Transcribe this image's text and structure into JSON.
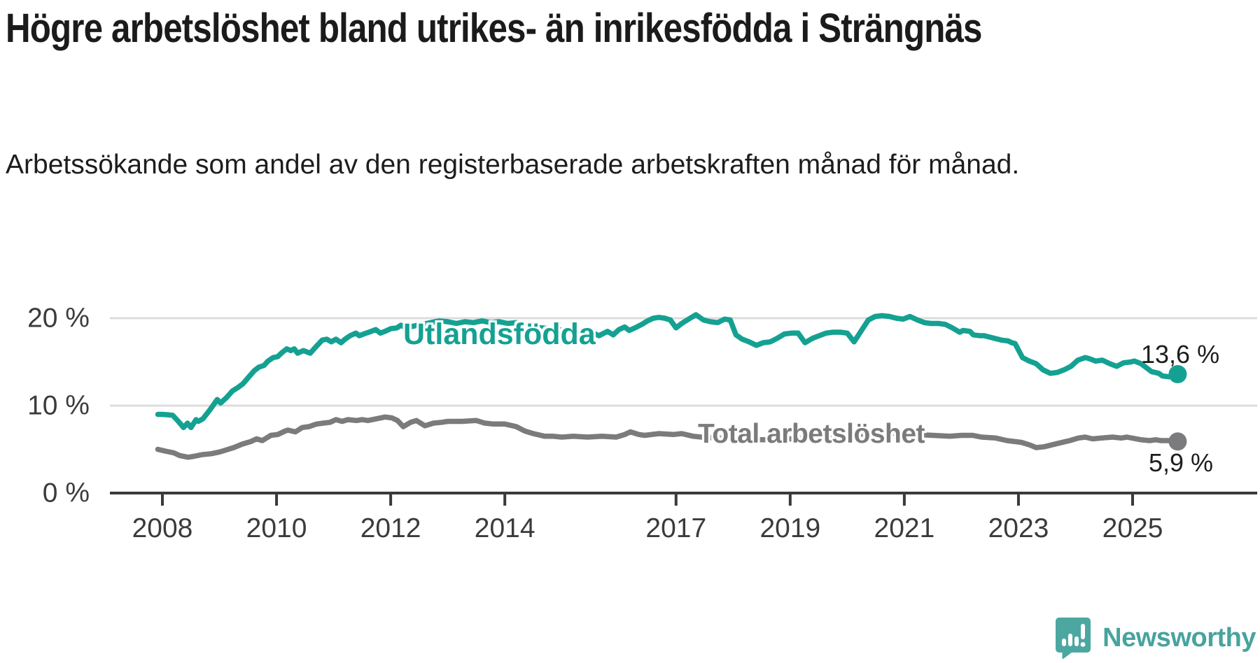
{
  "page": {
    "title": "Högre arbetslöshet bland utrikes- än inrikesfödda i Strängnäs",
    "subtitle": "Arbetssökande som andel av den registerbaserade arbetskraften månad för månad."
  },
  "footer": {
    "brand": "Newsworthy"
  },
  "chart_data": {
    "type": "line",
    "title": "Högre arbetslöshet bland utrikes- än inrikesfödda i Strängnäs",
    "subtitle": "Arbetssökande som andel av den registerbaserade arbetskraften månad för månad.",
    "unit": "percent",
    "grid": "horizontal",
    "legend_position": "inline-labels",
    "xlim": [
      2007.1,
      2027.2
    ],
    "ylim": [
      0,
      22
    ],
    "x_ticks": [
      {
        "value": 2008,
        "label": "2008"
      },
      {
        "value": 2010,
        "label": "2010"
      },
      {
        "value": 2012,
        "label": "2012"
      },
      {
        "value": 2014,
        "label": "2014"
      },
      {
        "value": 2017,
        "label": "2017"
      },
      {
        "value": 2019,
        "label": "2019"
      },
      {
        "value": 2021,
        "label": "2021"
      },
      {
        "value": 2023,
        "label": "2023"
      },
      {
        "value": 2025,
        "label": "2025"
      }
    ],
    "y_ticks": [
      {
        "value": 0,
        "label": "0 %"
      },
      {
        "value": 10,
        "label": "10 %"
      },
      {
        "value": 20,
        "label": "20 %"
      }
    ],
    "colors": {
      "axis": "#3a3a3a",
      "grid": "#dcdcdc",
      "tick_text": "#3b3b3b"
    },
    "series": [
      {
        "name": "Utlandsfödda",
        "color": "#14a192",
        "end_label": "13,6 %",
        "end_value": 13.6,
        "points": [
          [
            2007.92,
            9.0
          ],
          [
            2008.0,
            9.0
          ],
          [
            2008.1,
            8.95
          ],
          [
            2008.18,
            8.9
          ],
          [
            2008.28,
            8.2
          ],
          [
            2008.37,
            7.5
          ],
          [
            2008.44,
            8.0
          ],
          [
            2008.5,
            7.5
          ],
          [
            2008.59,
            8.4
          ],
          [
            2008.63,
            8.2
          ],
          [
            2008.71,
            8.5
          ],
          [
            2008.83,
            9.5
          ],
          [
            2008.96,
            10.7
          ],
          [
            2009.02,
            10.3
          ],
          [
            2009.12,
            10.9
          ],
          [
            2009.23,
            11.7
          ],
          [
            2009.33,
            12.1
          ],
          [
            2009.41,
            12.5
          ],
          [
            2009.53,
            13.4
          ],
          [
            2009.61,
            14.0
          ],
          [
            2009.69,
            14.4
          ],
          [
            2009.78,
            14.6
          ],
          [
            2009.85,
            15.1
          ],
          [
            2009.94,
            15.5
          ],
          [
            2010.02,
            15.6
          ],
          [
            2010.1,
            16.1
          ],
          [
            2010.18,
            16.5
          ],
          [
            2010.25,
            16.3
          ],
          [
            2010.31,
            16.5
          ],
          [
            2010.37,
            16.0
          ],
          [
            2010.47,
            16.3
          ],
          [
            2010.59,
            16.0
          ],
          [
            2010.7,
            16.8
          ],
          [
            2010.8,
            17.5
          ],
          [
            2010.88,
            17.6
          ],
          [
            2010.96,
            17.3
          ],
          [
            2011.04,
            17.6
          ],
          [
            2011.13,
            17.2
          ],
          [
            2011.2,
            17.6
          ],
          [
            2011.29,
            18.0
          ],
          [
            2011.39,
            18.3
          ],
          [
            2011.45,
            18.0
          ],
          [
            2011.57,
            18.3
          ],
          [
            2011.66,
            18.5
          ],
          [
            2011.74,
            18.7
          ],
          [
            2011.82,
            18.3
          ],
          [
            2011.9,
            18.5
          ],
          [
            2012.0,
            18.8
          ],
          [
            2012.11,
            18.9
          ],
          [
            2012.18,
            19.2
          ],
          [
            2012.27,
            18.9
          ],
          [
            2012.4,
            19.1
          ],
          [
            2012.55,
            19.3
          ],
          [
            2012.7,
            19.5
          ],
          [
            2012.85,
            19.7
          ],
          [
            2013.0,
            19.6
          ],
          [
            2013.15,
            19.4
          ],
          [
            2013.3,
            19.6
          ],
          [
            2013.45,
            19.5
          ],
          [
            2013.6,
            19.7
          ],
          [
            2013.75,
            19.5
          ],
          [
            2013.9,
            19.6
          ],
          [
            2014.05,
            19.4
          ],
          [
            2014.2,
            19.5
          ],
          [
            2014.35,
            19.2
          ],
          [
            2014.5,
            19.0
          ],
          [
            2014.65,
            18.9
          ],
          [
            2014.8,
            18.8
          ],
          [
            2014.95,
            18.7
          ],
          [
            2015.1,
            18.6
          ],
          [
            2015.25,
            18.5
          ],
          [
            2015.4,
            18.4
          ],
          [
            2015.55,
            18.3
          ],
          [
            2015.65,
            18.0
          ],
          [
            2015.8,
            18.5
          ],
          [
            2015.9,
            18.1
          ],
          [
            2016.0,
            18.7
          ],
          [
            2016.1,
            19.0
          ],
          [
            2016.18,
            18.6
          ],
          [
            2016.28,
            18.9
          ],
          [
            2016.4,
            19.3
          ],
          [
            2016.5,
            19.7
          ],
          [
            2016.6,
            20.0
          ],
          [
            2016.7,
            20.1
          ],
          [
            2016.8,
            20.0
          ],
          [
            2016.9,
            19.8
          ],
          [
            2017.0,
            18.9
          ],
          [
            2017.1,
            19.4
          ],
          [
            2017.22,
            19.9
          ],
          [
            2017.35,
            20.4
          ],
          [
            2017.48,
            19.8
          ],
          [
            2017.6,
            19.6
          ],
          [
            2017.73,
            19.5
          ],
          [
            2017.85,
            19.9
          ],
          [
            2017.95,
            19.8
          ],
          [
            2018.05,
            18.1
          ],
          [
            2018.16,
            17.6
          ],
          [
            2018.28,
            17.3
          ],
          [
            2018.41,
            16.9
          ],
          [
            2018.53,
            17.2
          ],
          [
            2018.65,
            17.3
          ],
          [
            2018.77,
            17.7
          ],
          [
            2018.9,
            18.2
          ],
          [
            2019.02,
            18.3
          ],
          [
            2019.14,
            18.3
          ],
          [
            2019.26,
            17.2
          ],
          [
            2019.39,
            17.7
          ],
          [
            2019.51,
            18.0
          ],
          [
            2019.63,
            18.3
          ],
          [
            2019.75,
            18.4
          ],
          [
            2019.88,
            18.4
          ],
          [
            2020.0,
            18.3
          ],
          [
            2020.12,
            17.3
          ],
          [
            2020.25,
            18.6
          ],
          [
            2020.37,
            19.8
          ],
          [
            2020.49,
            20.2
          ],
          [
            2020.61,
            20.3
          ],
          [
            2020.74,
            20.2
          ],
          [
            2020.86,
            20.0
          ],
          [
            2020.98,
            19.9
          ],
          [
            2021.1,
            20.2
          ],
          [
            2021.23,
            19.8
          ],
          [
            2021.35,
            19.5
          ],
          [
            2021.47,
            19.4
          ],
          [
            2021.6,
            19.4
          ],
          [
            2021.72,
            19.3
          ],
          [
            2021.84,
            18.9
          ],
          [
            2021.97,
            18.4
          ],
          [
            2022.03,
            18.6
          ],
          [
            2022.15,
            18.5
          ],
          [
            2022.21,
            18.1
          ],
          [
            2022.33,
            18.0
          ],
          [
            2022.4,
            18.0
          ],
          [
            2022.52,
            17.8
          ],
          [
            2022.58,
            17.7
          ],
          [
            2022.7,
            17.5
          ],
          [
            2022.82,
            17.4
          ],
          [
            2022.88,
            17.2
          ],
          [
            2022.94,
            17.1
          ],
          [
            2023.07,
            15.5
          ],
          [
            2023.19,
            15.1
          ],
          [
            2023.31,
            14.8
          ],
          [
            2023.43,
            14.1
          ],
          [
            2023.56,
            13.7
          ],
          [
            2023.68,
            13.8
          ],
          [
            2023.8,
            14.1
          ],
          [
            2023.92,
            14.5
          ],
          [
            2024.04,
            15.2
          ],
          [
            2024.17,
            15.5
          ],
          [
            2024.23,
            15.4
          ],
          [
            2024.35,
            15.1
          ],
          [
            2024.47,
            15.2
          ],
          [
            2024.6,
            14.8
          ],
          [
            2024.72,
            14.5
          ],
          [
            2024.84,
            14.9
          ],
          [
            2024.97,
            15.0
          ],
          [
            2025.03,
            15.1
          ],
          [
            2025.15,
            14.8
          ],
          [
            2025.21,
            14.5
          ],
          [
            2025.33,
            13.9
          ],
          [
            2025.46,
            13.7
          ],
          [
            2025.52,
            13.4
          ],
          [
            2025.64,
            13.3
          ],
          [
            2025.79,
            13.6
          ]
        ]
      },
      {
        "name": "Total arbetslöshet",
        "color": "#7b7b7d",
        "end_label": "5,9 %",
        "end_value": 5.9,
        "points": [
          [
            2007.92,
            5.0
          ],
          [
            2008.05,
            4.8
          ],
          [
            2008.2,
            4.6
          ],
          [
            2008.3,
            4.3
          ],
          [
            2008.45,
            4.1
          ],
          [
            2008.55,
            4.2
          ],
          [
            2008.7,
            4.4
          ],
          [
            2008.85,
            4.5
          ],
          [
            2009.0,
            4.7
          ],
          [
            2009.1,
            4.9
          ],
          [
            2009.25,
            5.2
          ],
          [
            2009.4,
            5.6
          ],
          [
            2009.55,
            5.9
          ],
          [
            2009.65,
            6.2
          ],
          [
            2009.75,
            6.0
          ],
          [
            2009.9,
            6.6
          ],
          [
            2010.02,
            6.7
          ],
          [
            2010.15,
            7.1
          ],
          [
            2010.2,
            7.2
          ],
          [
            2010.33,
            7.0
          ],
          [
            2010.45,
            7.5
          ],
          [
            2010.57,
            7.6
          ],
          [
            2010.7,
            7.9
          ],
          [
            2010.82,
            8.0
          ],
          [
            2010.94,
            8.1
          ],
          [
            2011.04,
            8.4
          ],
          [
            2011.15,
            8.2
          ],
          [
            2011.25,
            8.4
          ],
          [
            2011.4,
            8.3
          ],
          [
            2011.5,
            8.4
          ],
          [
            2011.6,
            8.3
          ],
          [
            2011.75,
            8.5
          ],
          [
            2011.9,
            8.7
          ],
          [
            2012.02,
            8.6
          ],
          [
            2012.12,
            8.3
          ],
          [
            2012.22,
            7.6
          ],
          [
            2012.35,
            8.1
          ],
          [
            2012.45,
            8.3
          ],
          [
            2012.6,
            7.7
          ],
          [
            2012.75,
            8.0
          ],
          [
            2012.9,
            8.1
          ],
          [
            2013.0,
            8.2
          ],
          [
            2013.25,
            8.2
          ],
          [
            2013.5,
            8.3
          ],
          [
            2013.65,
            8.0
          ],
          [
            2013.8,
            7.9
          ],
          [
            2014.0,
            7.9
          ],
          [
            2014.2,
            7.6
          ],
          [
            2014.35,
            7.1
          ],
          [
            2014.5,
            6.8
          ],
          [
            2014.7,
            6.5
          ],
          [
            2014.85,
            6.5
          ],
          [
            2015.0,
            6.4
          ],
          [
            2015.2,
            6.5
          ],
          [
            2015.45,
            6.4
          ],
          [
            2015.7,
            6.5
          ],
          [
            2015.95,
            6.4
          ],
          [
            2016.1,
            6.7
          ],
          [
            2016.2,
            7.0
          ],
          [
            2016.35,
            6.7
          ],
          [
            2016.45,
            6.6
          ],
          [
            2016.7,
            6.8
          ],
          [
            2016.95,
            6.7
          ],
          [
            2017.1,
            6.8
          ],
          [
            2017.3,
            6.5
          ],
          [
            2017.45,
            6.4
          ],
          [
            2017.7,
            6.3
          ],
          [
            2018.0,
            6.2
          ],
          [
            2018.3,
            6.1
          ],
          [
            2018.6,
            6.1
          ],
          [
            2019.0,
            6.2
          ],
          [
            2019.5,
            6.3
          ],
          [
            2020.0,
            6.4
          ],
          [
            2020.4,
            6.9
          ],
          [
            2020.6,
            7.0
          ],
          [
            2020.9,
            6.8
          ],
          [
            2021.2,
            6.7
          ],
          [
            2021.5,
            6.6
          ],
          [
            2021.8,
            6.5
          ],
          [
            2022.0,
            6.6
          ],
          [
            2022.2,
            6.6
          ],
          [
            2022.35,
            6.4
          ],
          [
            2022.6,
            6.3
          ],
          [
            2022.8,
            6.0
          ],
          [
            2023.05,
            5.8
          ],
          [
            2023.2,
            5.5
          ],
          [
            2023.31,
            5.2
          ],
          [
            2023.45,
            5.3
          ],
          [
            2023.7,
            5.7
          ],
          [
            2023.9,
            6.0
          ],
          [
            2024.05,
            6.3
          ],
          [
            2024.17,
            6.4
          ],
          [
            2024.3,
            6.2
          ],
          [
            2024.45,
            6.3
          ],
          [
            2024.65,
            6.4
          ],
          [
            2024.8,
            6.3
          ],
          [
            2024.9,
            6.4
          ],
          [
            2025.15,
            6.1
          ],
          [
            2025.3,
            6.0
          ],
          [
            2025.4,
            6.1
          ],
          [
            2025.5,
            6.0
          ],
          [
            2025.65,
            6.0
          ],
          [
            2025.79,
            5.9
          ]
        ]
      }
    ]
  }
}
